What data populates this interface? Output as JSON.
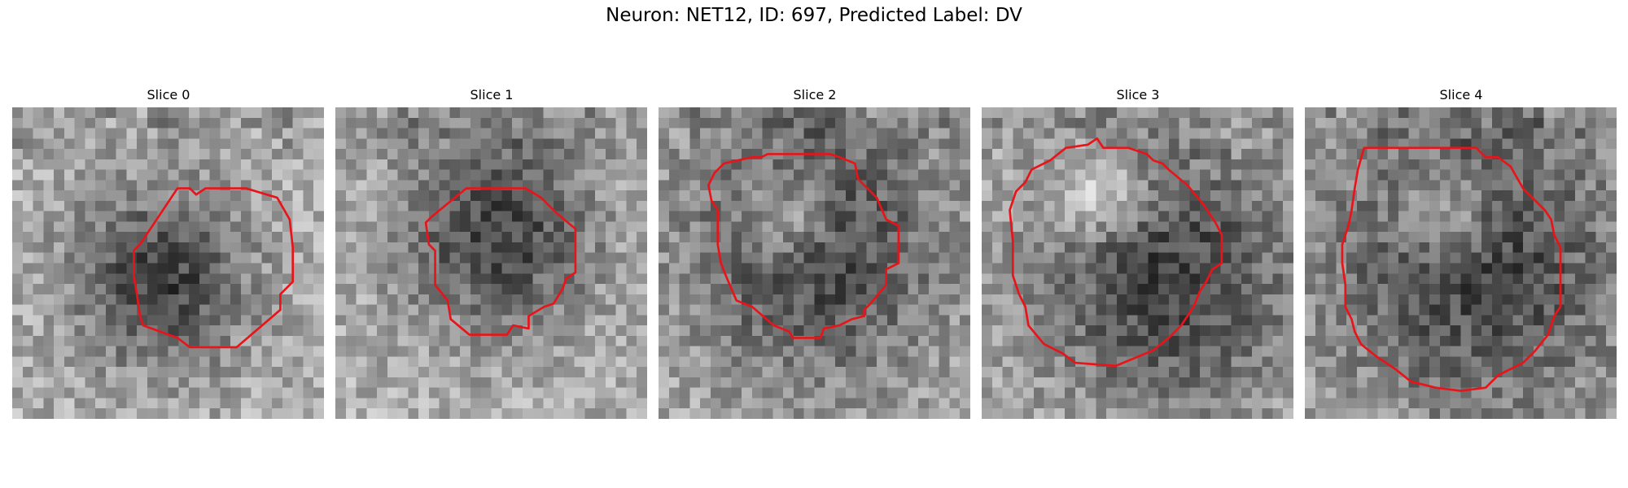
{
  "figure": {
    "title": "Neuron: NET12, ID: 697, Predicted Label: DV"
  },
  "colors": {
    "outline": "#e8141a",
    "background": "#ffffff"
  },
  "slices": [
    {
      "title": "Slice 0",
      "dark_center": [
        0.48,
        0.55
      ],
      "dark_radius": 0.2,
      "bright_center": null,
      "outline": [
        [
          0.53,
          0.26
        ],
        [
          0.57,
          0.26
        ],
        [
          0.59,
          0.28
        ],
        [
          0.62,
          0.26
        ],
        [
          0.75,
          0.26
        ],
        [
          0.85,
          0.29
        ],
        [
          0.89,
          0.36
        ],
        [
          0.9,
          0.45
        ],
        [
          0.9,
          0.56
        ],
        [
          0.86,
          0.6
        ],
        [
          0.86,
          0.65
        ],
        [
          0.72,
          0.77
        ],
        [
          0.57,
          0.77
        ],
        [
          0.53,
          0.74
        ],
        [
          0.42,
          0.7
        ],
        [
          0.41,
          0.67
        ],
        [
          0.4,
          0.6
        ],
        [
          0.39,
          0.54
        ],
        [
          0.39,
          0.46
        ],
        [
          0.41,
          0.44
        ]
      ]
    },
    {
      "title": "Slice 1",
      "dark_center": [
        0.52,
        0.4
      ],
      "dark_radius": 0.22,
      "bright_center": null,
      "outline": [
        [
          0.42,
          0.26
        ],
        [
          0.61,
          0.26
        ],
        [
          0.66,
          0.29
        ],
        [
          0.71,
          0.34
        ],
        [
          0.77,
          0.39
        ],
        [
          0.77,
          0.53
        ],
        [
          0.74,
          0.55
        ],
        [
          0.73,
          0.58
        ],
        [
          0.7,
          0.63
        ],
        [
          0.67,
          0.64
        ],
        [
          0.62,
          0.67
        ],
        [
          0.62,
          0.71
        ],
        [
          0.57,
          0.7
        ],
        [
          0.55,
          0.73
        ],
        [
          0.43,
          0.73
        ],
        [
          0.37,
          0.68
        ],
        [
          0.36,
          0.62
        ],
        [
          0.32,
          0.57
        ],
        [
          0.32,
          0.46
        ],
        [
          0.3,
          0.44
        ],
        [
          0.29,
          0.37
        ],
        [
          0.31,
          0.35
        ]
      ]
    },
    {
      "title": "Slice 2",
      "dark_center": [
        0.5,
        0.45
      ],
      "dark_radius": 0.3,
      "bright_center": [
        0.42,
        0.36
      ],
      "outline": [
        [
          0.3,
          0.16
        ],
        [
          0.33,
          0.16
        ],
        [
          0.35,
          0.15
        ],
        [
          0.55,
          0.15
        ],
        [
          0.58,
          0.16
        ],
        [
          0.63,
          0.18
        ],
        [
          0.64,
          0.23
        ],
        [
          0.7,
          0.29
        ],
        [
          0.73,
          0.36
        ],
        [
          0.77,
          0.38
        ],
        [
          0.77,
          0.5
        ],
        [
          0.73,
          0.52
        ],
        [
          0.73,
          0.57
        ],
        [
          0.68,
          0.63
        ],
        [
          0.66,
          0.65
        ],
        [
          0.66,
          0.67
        ],
        [
          0.62,
          0.68
        ],
        [
          0.58,
          0.7
        ],
        [
          0.53,
          0.71
        ],
        [
          0.52,
          0.74
        ],
        [
          0.43,
          0.74
        ],
        [
          0.42,
          0.72
        ],
        [
          0.37,
          0.7
        ],
        [
          0.3,
          0.64
        ],
        [
          0.25,
          0.62
        ],
        [
          0.22,
          0.55
        ],
        [
          0.2,
          0.5
        ],
        [
          0.19,
          0.44
        ],
        [
          0.19,
          0.33
        ],
        [
          0.17,
          0.3
        ],
        [
          0.16,
          0.25
        ],
        [
          0.18,
          0.21
        ],
        [
          0.21,
          0.18
        ]
      ]
    },
    {
      "title": "Slice 3",
      "dark_center": [
        0.6,
        0.55
      ],
      "dark_radius": 0.3,
      "bright_center": [
        0.38,
        0.28
      ],
      "outline": [
        [
          0.22,
          0.17
        ],
        [
          0.27,
          0.13
        ],
        [
          0.34,
          0.12
        ],
        [
          0.37,
          0.1
        ],
        [
          0.39,
          0.13
        ],
        [
          0.47,
          0.13
        ],
        [
          0.53,
          0.15
        ],
        [
          0.55,
          0.17
        ],
        [
          0.58,
          0.18
        ],
        [
          0.6,
          0.2
        ],
        [
          0.66,
          0.25
        ],
        [
          0.71,
          0.31
        ],
        [
          0.75,
          0.37
        ],
        [
          0.77,
          0.41
        ],
        [
          0.77,
          0.5
        ],
        [
          0.74,
          0.52
        ],
        [
          0.72,
          0.56
        ],
        [
          0.7,
          0.59
        ],
        [
          0.68,
          0.64
        ],
        [
          0.64,
          0.7
        ],
        [
          0.6,
          0.74
        ],
        [
          0.55,
          0.78
        ],
        [
          0.43,
          0.83
        ],
        [
          0.3,
          0.82
        ],
        [
          0.26,
          0.79
        ],
        [
          0.2,
          0.76
        ],
        [
          0.15,
          0.7
        ],
        [
          0.14,
          0.64
        ],
        [
          0.12,
          0.6
        ],
        [
          0.1,
          0.54
        ],
        [
          0.1,
          0.43
        ],
        [
          0.09,
          0.33
        ],
        [
          0.11,
          0.27
        ],
        [
          0.14,
          0.24
        ],
        [
          0.16,
          0.2
        ]
      ]
    },
    {
      "title": "Slice 4",
      "dark_center": [
        0.55,
        0.5
      ],
      "dark_radius": 0.35,
      "bright_center": [
        0.45,
        0.35
      ],
      "outline": [
        [
          0.19,
          0.13
        ],
        [
          0.3,
          0.13
        ],
        [
          0.55,
          0.13
        ],
        [
          0.58,
          0.16
        ],
        [
          0.62,
          0.16
        ],
        [
          0.66,
          0.19
        ],
        [
          0.7,
          0.26
        ],
        [
          0.77,
          0.33
        ],
        [
          0.79,
          0.36
        ],
        [
          0.8,
          0.41
        ],
        [
          0.82,
          0.45
        ],
        [
          0.82,
          0.64
        ],
        [
          0.8,
          0.67
        ],
        [
          0.78,
          0.73
        ],
        [
          0.74,
          0.78
        ],
        [
          0.7,
          0.82
        ],
        [
          0.62,
          0.86
        ],
        [
          0.58,
          0.9
        ],
        [
          0.5,
          0.91
        ],
        [
          0.42,
          0.9
        ],
        [
          0.34,
          0.88
        ],
        [
          0.29,
          0.84
        ],
        [
          0.23,
          0.8
        ],
        [
          0.18,
          0.76
        ],
        [
          0.16,
          0.72
        ],
        [
          0.15,
          0.68
        ],
        [
          0.13,
          0.64
        ],
        [
          0.13,
          0.57
        ],
        [
          0.12,
          0.5
        ],
        [
          0.12,
          0.44
        ],
        [
          0.14,
          0.38
        ],
        [
          0.15,
          0.33
        ],
        [
          0.16,
          0.26
        ],
        [
          0.17,
          0.2
        ]
      ]
    }
  ]
}
